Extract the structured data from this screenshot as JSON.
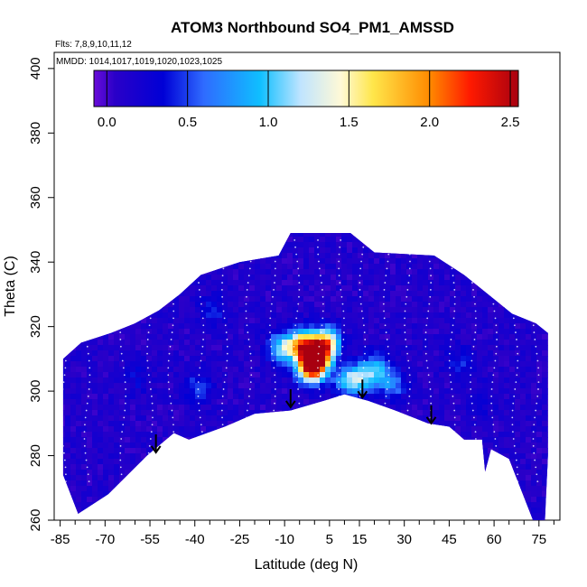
{
  "chart_data": {
    "type": "heatmap",
    "title": "ATOM3 Northbound SO4_PM1_AMSSD",
    "flights_note": "Flts: 7,8,9,10,11,12",
    "dates_note": "MMDD: 1014,1017,1019,1020,1023,1025",
    "xlabel": "Latitude (deg N)",
    "ylabel": "Theta (C)",
    "xlim": [
      -87,
      82
    ],
    "ylim": [
      260,
      405
    ],
    "x_ticks": [
      -85,
      -70,
      -55,
      -40,
      -25,
      -10,
      5,
      15,
      30,
      45,
      60,
      75
    ],
    "x_tick_labels": [
      "-85",
      "-70",
      "-55",
      "-40",
      "-25",
      "-10",
      "5",
      "15",
      "30",
      "45",
      "60",
      "75"
    ],
    "x_minor_ticks": [
      -80,
      -75,
      -65,
      -60,
      -50,
      -45,
      -35,
      -30,
      -20,
      -15,
      -5,
      0,
      10,
      20,
      25,
      35,
      40,
      50,
      55,
      65,
      70,
      80
    ],
    "y_ticks": [
      260,
      280,
      300,
      320,
      340,
      360,
      380,
      400
    ],
    "y_tick_labels": [
      "260",
      "280",
      "300",
      "320",
      "340",
      "360",
      "380",
      "400"
    ],
    "colorbar": {
      "range": [
        -0.08,
        2.55
      ],
      "ticks": [
        0.0,
        0.5,
        1.0,
        1.5,
        2.0,
        2.5
      ],
      "tick_labels": [
        "0.0",
        "0.5",
        "1.0",
        "1.5",
        "2.0",
        "2.5"
      ],
      "divider_values": [
        0.0,
        0.5,
        1.0,
        1.5,
        2.0,
        2.5
      ],
      "stops": [
        {
          "value": -0.08,
          "color": "#6a0dd8"
        },
        {
          "value": 0.05,
          "color": "#2a00c8"
        },
        {
          "value": 0.35,
          "color": "#0000d6"
        },
        {
          "value": 0.6,
          "color": "#2f6bff"
        },
        {
          "value": 0.95,
          "color": "#0fbfff"
        },
        {
          "value": 1.2,
          "color": "#bfe4ff"
        },
        {
          "value": 1.45,
          "color": "#fff9d6"
        },
        {
          "value": 1.65,
          "color": "#ffe64a"
        },
        {
          "value": 2.0,
          "color": "#ff8a00"
        },
        {
          "value": 2.25,
          "color": "#ff1a00"
        },
        {
          "value": 2.55,
          "color": "#a80010"
        }
      ]
    },
    "data_envelope_bottom": [
      {
        "lat": -84,
        "theta": 274
      },
      {
        "lat": -79,
        "theta": 262
      },
      {
        "lat": -69,
        "theta": 268
      },
      {
        "lat": -56,
        "theta": 280
      },
      {
        "lat": -47,
        "theta": 287
      },
      {
        "lat": -42,
        "theta": 285
      },
      {
        "lat": -30,
        "theta": 289
      },
      {
        "lat": -20,
        "theta": 293
      },
      {
        "lat": -8,
        "theta": 294
      },
      {
        "lat": 3,
        "theta": 297
      },
      {
        "lat": 10,
        "theta": 299
      },
      {
        "lat": 18,
        "theta": 297
      },
      {
        "lat": 27,
        "theta": 294
      },
      {
        "lat": 38,
        "theta": 290
      },
      {
        "lat": 45,
        "theta": 289
      },
      {
        "lat": 50,
        "theta": 285
      },
      {
        "lat": 56,
        "theta": 285
      },
      {
        "lat": 57,
        "theta": 275
      },
      {
        "lat": 59,
        "theta": 282
      },
      {
        "lat": 65,
        "theta": 279
      },
      {
        "lat": 73,
        "theta": 260
      },
      {
        "lat": 77,
        "theta": 260
      }
    ],
    "data_envelope_top": [
      {
        "lat": -84,
        "theta": 310
      },
      {
        "lat": -78,
        "theta": 315
      },
      {
        "lat": -68,
        "theta": 318
      },
      {
        "lat": -60,
        "theta": 321
      },
      {
        "lat": -52,
        "theta": 325
      },
      {
        "lat": -45,
        "theta": 330
      },
      {
        "lat": -38,
        "theta": 336
      },
      {
        "lat": -25,
        "theta": 340
      },
      {
        "lat": -12,
        "theta": 342
      },
      {
        "lat": -8,
        "theta": 349
      },
      {
        "lat": 12,
        "theta": 349
      },
      {
        "lat": 20,
        "theta": 343
      },
      {
        "lat": 40,
        "theta": 342
      },
      {
        "lat": 50,
        "theta": 336
      },
      {
        "lat": 58,
        "theta": 330
      },
      {
        "lat": 66,
        "theta": 324
      },
      {
        "lat": 74,
        "theta": 321
      },
      {
        "lat": 78,
        "theta": 318
      },
      {
        "lat": 78,
        "theta": 280
      }
    ],
    "background_value": 0.12,
    "hotspots": [
      {
        "lat": 0,
        "theta": 312,
        "value": 2.2
      },
      {
        "lat": -5,
        "theta": 315,
        "value": 1.9
      },
      {
        "lat": -2,
        "theta": 308,
        "value": 2.4
      },
      {
        "lat": 3,
        "theta": 316,
        "value": 1.6
      },
      {
        "lat": -12,
        "theta": 314,
        "value": 1.1
      },
      {
        "lat": 15,
        "theta": 305,
        "value": 0.95
      },
      {
        "lat": 20,
        "theta": 308,
        "value": 0.8
      },
      {
        "lat": 10,
        "theta": 304,
        "value": 0.9
      },
      {
        "lat": 25,
        "theta": 303,
        "value": 0.7
      },
      {
        "lat": -40,
        "theta": 302,
        "value": 0.5
      },
      {
        "lat": -35,
        "theta": 326,
        "value": 0.45
      },
      {
        "lat": 48,
        "theta": 310,
        "value": 0.4
      },
      {
        "lat": -60,
        "theta": 305,
        "value": 0.35
      },
      {
        "lat": 55,
        "theta": 298,
        "value": 0.3
      }
    ],
    "tropopause_arrows": [
      {
        "lat": -53,
        "theta": 281
      },
      {
        "lat": -8,
        "theta": 295
      },
      {
        "lat": 16,
        "theta": 298
      },
      {
        "lat": 39,
        "theta": 290
      }
    ]
  }
}
